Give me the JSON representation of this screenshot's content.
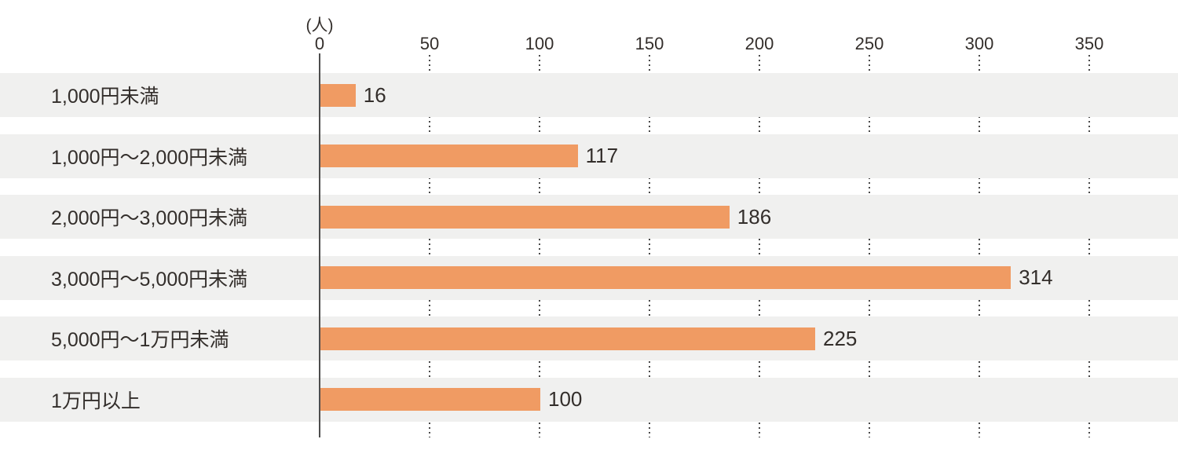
{
  "chart_data": {
    "type": "bar",
    "orientation": "horizontal",
    "title": "",
    "unit": "(人)",
    "xlabel": "(人)",
    "ylabel": "",
    "categories": [
      "1,000円未満",
      "1,000円〜2,000円未満",
      "2,000円〜3,000円未満",
      "3,000円〜5,000円未満",
      "5,000円〜1万円未満",
      "1万円以上"
    ],
    "values": [
      16,
      117,
      186,
      314,
      225,
      100
    ],
    "x_ticks": [
      0,
      50,
      100,
      150,
      200,
      250,
      300,
      350
    ],
    "xlim": [
      0,
      350
    ],
    "grid": "dotted vertical gridlines at each tick, visible only between row bands",
    "legend": "none"
  },
  "colors": {
    "bar": "#F09B63",
    "row_band": "#F0F0EF",
    "axis_line": "#4D4D4D",
    "grid_dot": "#4A4A4A",
    "text": "#332E2B",
    "background": "#FFFFFF"
  }
}
